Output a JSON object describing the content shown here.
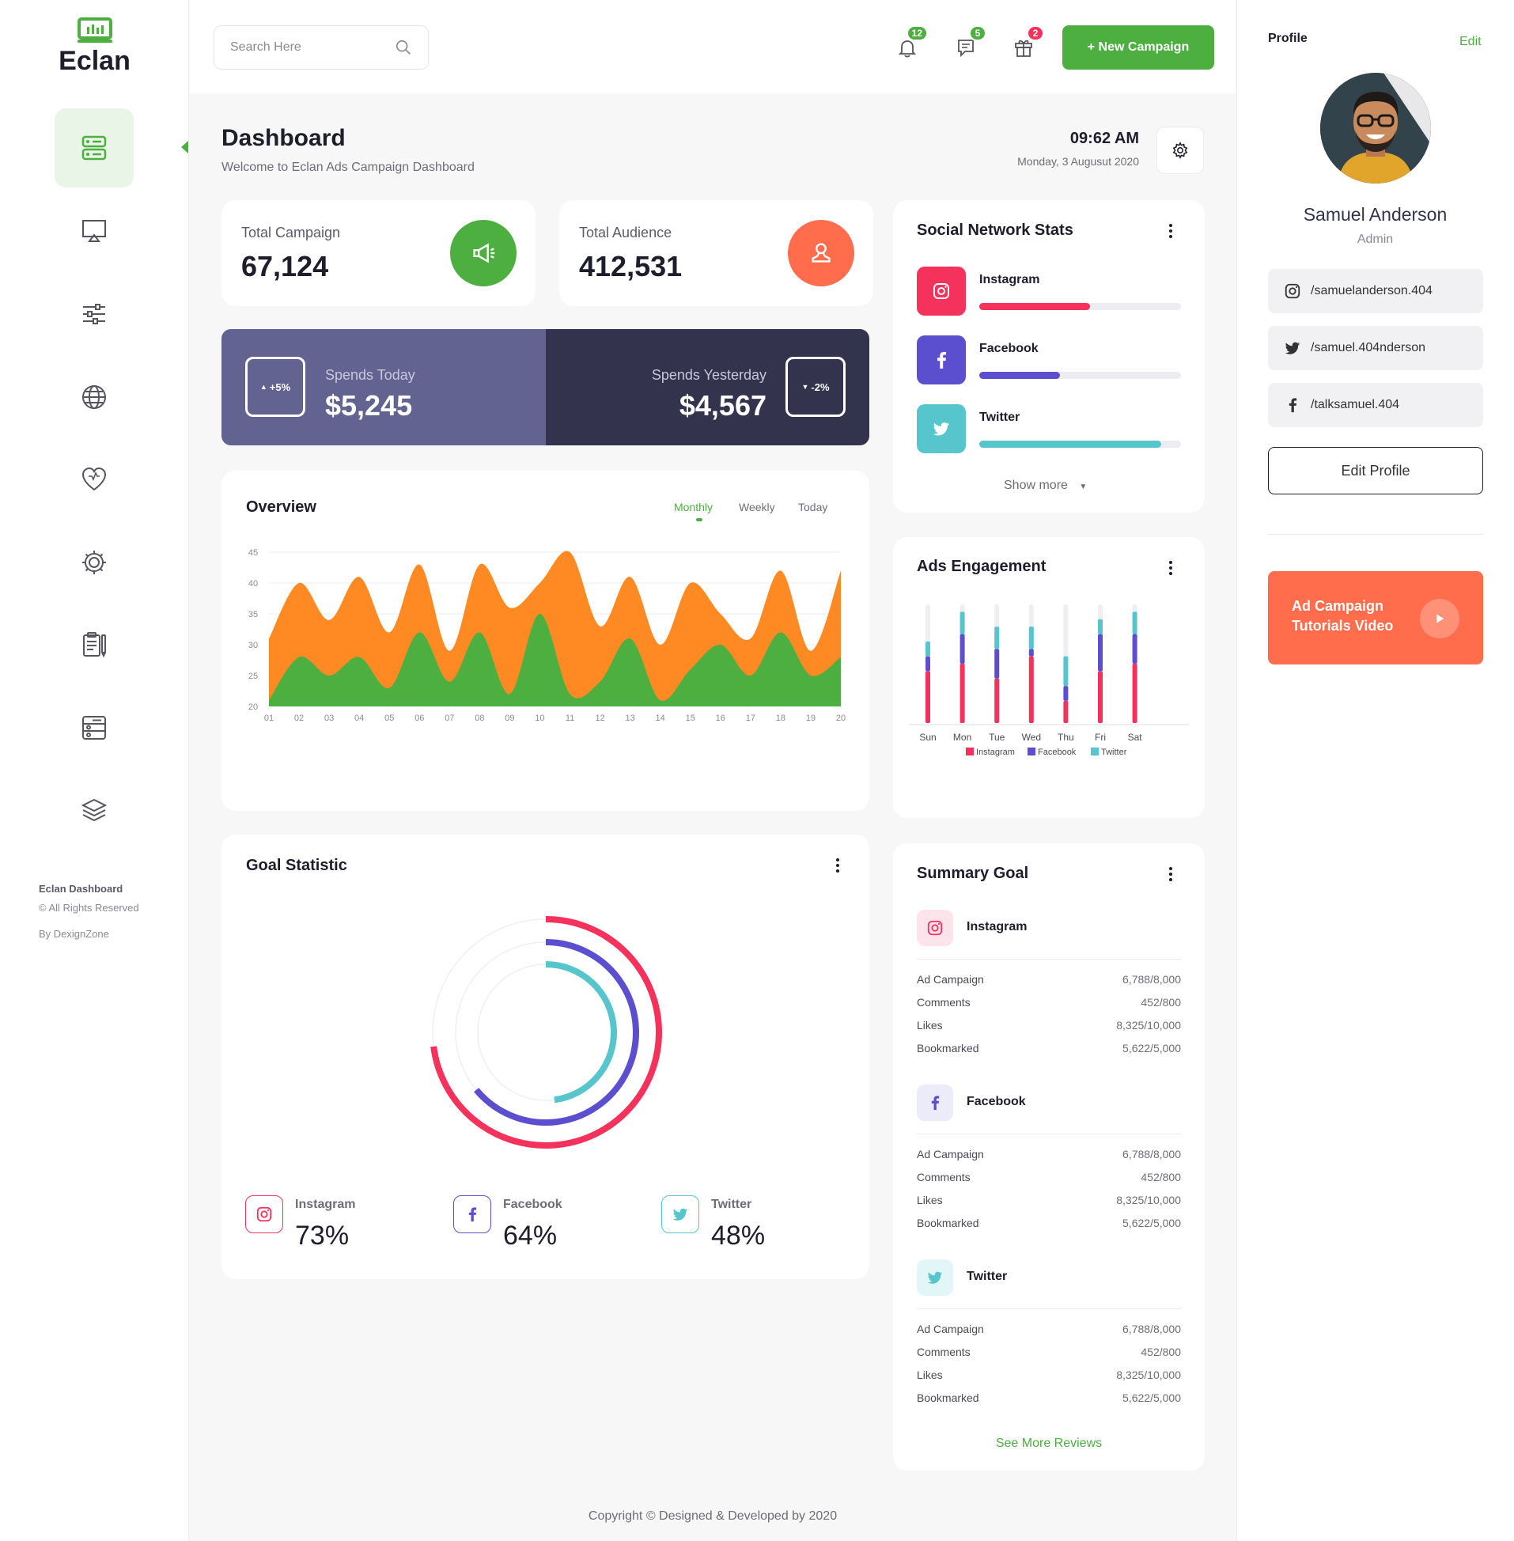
{
  "brand": {
    "name": "Eclan",
    "accent": "#4caf3f"
  },
  "sidebar": {
    "items": [
      {
        "icon": "dashboard-icon",
        "active": true
      },
      {
        "icon": "monitor-icon"
      },
      {
        "icon": "sliders-icon"
      },
      {
        "icon": "globe-icon"
      },
      {
        "icon": "heart-icon"
      },
      {
        "icon": "gear-icon"
      },
      {
        "icon": "clipboard-icon"
      },
      {
        "icon": "database-icon"
      },
      {
        "icon": "layers-icon"
      }
    ],
    "footer_title": "Eclan Dashboard",
    "footer_rights": "© All Rights Reserved",
    "footer_by": "By DexignZone"
  },
  "topbar": {
    "search_placeholder": "Search Here",
    "notifications": {
      "icon": "bell-icon",
      "count": "12",
      "color": "#4caf3f"
    },
    "messages": {
      "icon": "chat-icon",
      "count": "5",
      "color": "#4caf3f"
    },
    "gifts": {
      "icon": "gift-icon",
      "count": "2",
      "color": "#f5325c"
    },
    "new_campaign": "+ New Campaign"
  },
  "header": {
    "title": "Dashboard",
    "subtitle": "Welcome to Eclan Ads Campaign Dashboard",
    "time": "09:62 AM",
    "date": "Monday, 3 Augusut 2020"
  },
  "stats": {
    "campaign": {
      "label": "Total Campaign",
      "value": "67,124",
      "color": "#4caf3f"
    },
    "audience": {
      "label": "Total Audience",
      "value": "412,531",
      "color": "#ff6d4d"
    }
  },
  "spends": {
    "today": {
      "label": "Spends Today",
      "value": "$5,245",
      "change": "+5%"
    },
    "yesterday": {
      "label": "Spends Yesterday",
      "value": "$4,567",
      "change": "-2%"
    }
  },
  "overview": {
    "title": "Overview",
    "tabs": [
      "Monthly",
      "Weekly",
      "Today"
    ],
    "active_tab": "Monthly"
  },
  "social": {
    "title": "Social Network Stats",
    "show_more": "Show more",
    "items": [
      {
        "name": "Instagram",
        "level": 0.55,
        "color": "#f5325c"
      },
      {
        "name": "Facebook",
        "level": 0.4,
        "color": "#5b4fcf"
      },
      {
        "name": "Twitter",
        "level": 0.9,
        "color": "#57c6cc"
      }
    ]
  },
  "engagement": {
    "title": "Ads Engagement",
    "legend": [
      "Instagram",
      "Facebook",
      "Twitter"
    ]
  },
  "goal": {
    "title": "Goal Statistic",
    "items": [
      {
        "name": "Instagram",
        "value": "73%",
        "pct": 73,
        "color": "#f5325c"
      },
      {
        "name": "Facebook",
        "value": "64%",
        "pct": 64,
        "color": "#5b4fcf"
      },
      {
        "name": "Twitter",
        "value": "48%",
        "pct": 48,
        "color": "#57c6cc"
      }
    ]
  },
  "summary": {
    "title": "Summary Goal",
    "see_more": "See More Reviews",
    "groups": [
      {
        "name": "Instagram",
        "rows": [
          [
            "Ad Campaign",
            "6,788/8,000"
          ],
          [
            "Comments",
            "452/800"
          ],
          [
            "Likes",
            "8,325/10,000"
          ],
          [
            "Bookmarked",
            "5,622/5,000"
          ]
        ]
      },
      {
        "name": "Facebook",
        "rows": [
          [
            "Ad Campaign",
            "6,788/8,000"
          ],
          [
            "Comments",
            "452/800"
          ],
          [
            "Likes",
            "8,325/10,000"
          ],
          [
            "Bookmarked",
            "5,622/5,000"
          ]
        ]
      },
      {
        "name": "Twitter",
        "rows": [
          [
            "Ad Campaign",
            "6,788/8,000"
          ],
          [
            "Comments",
            "452/800"
          ],
          [
            "Likes",
            "8,325/10,000"
          ],
          [
            "Bookmarked",
            "5,622/5,000"
          ]
        ]
      }
    ]
  },
  "profile": {
    "heading": "Profile",
    "edit": "Edit",
    "name": "Samuel Anderson",
    "role": "Admin",
    "instagram": "/samuelanderson.404",
    "twitter": "/samuel.404nderson",
    "facebook": "/talksamuel.404",
    "edit_profile": "Edit Profile",
    "tutorial_line1": "Ad Campaign",
    "tutorial_line2": "Tutorials Video"
  },
  "footer": "Copyright © Designed & Developed by 2020",
  "chart_data": [
    {
      "type": "area",
      "title": "Overview",
      "x": [
        "01",
        "02",
        "03",
        "04",
        "05",
        "06",
        "07",
        "08",
        "09",
        "10",
        "11",
        "12",
        "13",
        "14",
        "15",
        "16",
        "17",
        "18",
        "19",
        "20"
      ],
      "ylim": [
        20,
        45
      ],
      "yticks": [
        45,
        40,
        35,
        30,
        25,
        20
      ],
      "series": [
        {
          "color": "#ff8a24",
          "values": [
            31,
            40,
            34,
            41,
            32,
            43,
            29,
            43,
            36,
            40,
            45,
            33,
            41,
            30,
            40,
            35,
            31,
            42,
            29,
            42
          ]
        },
        {
          "color": "#4caf3f",
          "values": [
            21,
            28,
            25,
            28,
            23,
            32,
            24,
            32,
            22,
            35,
            22,
            24,
            31,
            21,
            26,
            30,
            25,
            32,
            25,
            28
          ]
        }
      ]
    },
    {
      "type": "bar",
      "title": "Ads Engagement",
      "categories": [
        "Sun",
        "Mon",
        "Tue",
        "Wed",
        "Thu",
        "Fri",
        "Sat"
      ],
      "series": [
        {
          "name": "Instagram",
          "color": "#f5325c",
          "values": [
            7,
            8,
            6,
            9,
            3,
            7,
            8
          ]
        },
        {
          "name": "Facebook",
          "color": "#5b4fcf",
          "values": [
            2,
            4,
            4,
            1,
            2,
            5,
            4
          ]
        },
        {
          "name": "Twitter",
          "color": "#57c6cc",
          "values": [
            2,
            3,
            3,
            3,
            4,
            2,
            3
          ]
        }
      ]
    }
  ]
}
